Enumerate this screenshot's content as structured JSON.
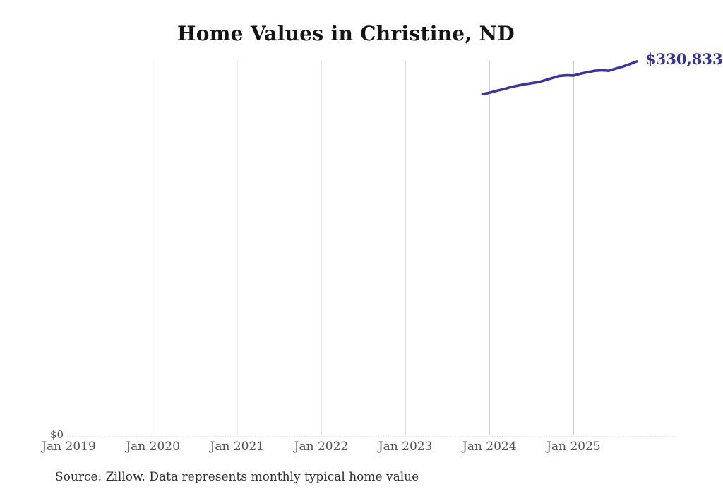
{
  "title": "Home Values in Christine, ND",
  "source_note": "Source: Zillow. Data represents monthly typical home value",
  "y_axis": {
    "zero_label": "$0"
  },
  "end_label": "$330,833",
  "colors": {
    "line": "#3a34a3",
    "end_label": "#34309f",
    "grid": "#c9c9c9",
    "baseline": "#d9d9d9",
    "axis_label": "#55565a",
    "title": "#141414",
    "source": "#2e2e2e"
  },
  "chart_data": {
    "type": "line",
    "title": "Home Values in Christine, ND",
    "series_name": "Monthly typical home value",
    "x": [
      "Dec 2023",
      "Jan 2024",
      "Feb 2024",
      "Mar 2024",
      "Apr 2024",
      "May 2024",
      "Jun 2024",
      "Jul 2024",
      "Aug 2024",
      "Sep 2024",
      "Oct 2024",
      "Nov 2024",
      "Dec 2024",
      "Jan 2025",
      "Feb 2025",
      "Mar 2025",
      "Apr 2025",
      "May 2025",
      "Jun 2025",
      "Jul 2025",
      "Aug 2025",
      "Sep 2025",
      "Oct 2025"
    ],
    "values": [
      302000,
      303200,
      304900,
      306300,
      308100,
      309400,
      310700,
      311700,
      312600,
      314400,
      316300,
      318100,
      318600,
      318400,
      320100,
      321400,
      322600,
      323000,
      322600,
      324500,
      326300,
      328500,
      330833
    ],
    "x_axis_ticks": [
      "Jan 2019",
      "Jan 2020",
      "Jan 2021",
      "Jan 2022",
      "Jan 2023",
      "Jan 2024",
      "Jan 2025"
    ],
    "xlabel": "",
    "ylabel": "",
    "ylim": [
      0,
      331500
    ],
    "grid": "vertical-only",
    "legend": "none",
    "last_point_label": "$330,833"
  }
}
